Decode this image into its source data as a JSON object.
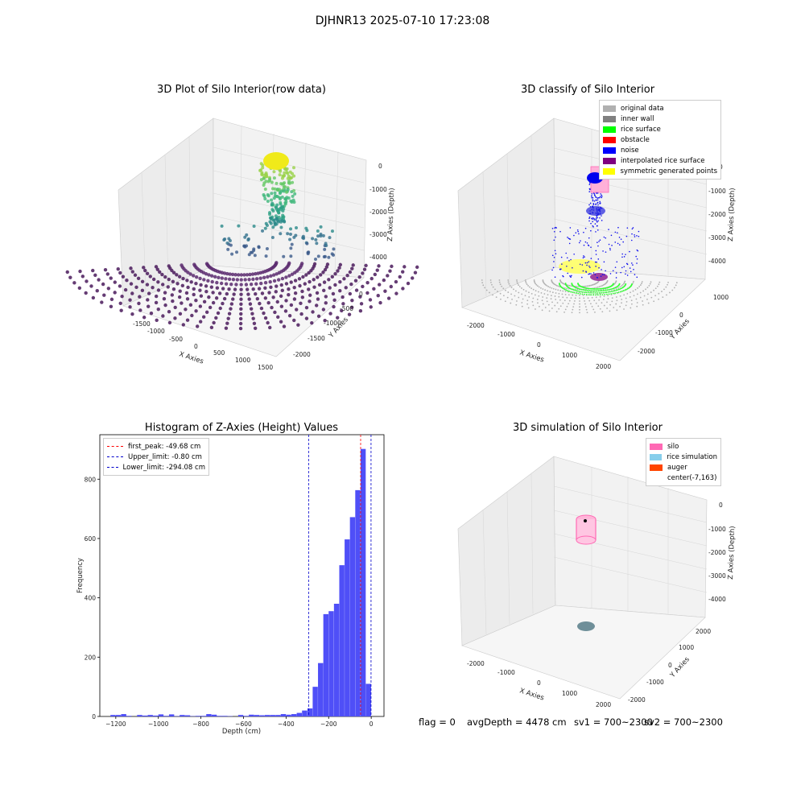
{
  "figure_title": "DJHNR13 2025-07-10 17:23:08",
  "panels": {
    "p1": {
      "title": "3D Plot of Silo Interior(row data)",
      "xlabel": "X Axies",
      "ylabel": "Y Axies",
      "zlabel": "Z Axies (Depth)",
      "xticks": [
        "-1500",
        "-1000",
        "-500",
        "0",
        "500",
        "1000",
        "1500"
      ],
      "yticks": [
        "0",
        "-500",
        "-1000",
        "-1500",
        "-2000"
      ],
      "zticks": [
        "0",
        "-1000",
        "-2000",
        "-3000",
        "-4000"
      ]
    },
    "p2": {
      "title": "3D classify of Silo Interior",
      "xlabel": "X Axies",
      "ylabel": "Y Axies",
      "zlabel": "Z Axies (Depth)",
      "xticks": [
        "-2000",
        "-1000",
        "0",
        "1000",
        "2000"
      ],
      "yticks": [
        "1000",
        "0",
        "-1000",
        "-2000"
      ],
      "zticks": [
        "0",
        "-1000",
        "-2000",
        "-3000",
        "-4000"
      ],
      "legend": [
        {
          "label": "original data",
          "color": "#b0b0b0"
        },
        {
          "label": "inner wall",
          "color": "#808080"
        },
        {
          "label": "rice surface",
          "color": "#00ff00"
        },
        {
          "label": "obstacle",
          "color": "#ff0000"
        },
        {
          "label": "noise",
          "color": "#0000ff"
        },
        {
          "label": "interpolated rice surface",
          "color": "#800080"
        },
        {
          "label": "symmetric generated points",
          "color": "#ffff00"
        }
      ]
    },
    "p4": {
      "title": "3D simulation of Silo Interior",
      "xlabel": "X Axies",
      "ylabel": "Y Axies",
      "zlabel": "Z Axies (Depth)",
      "xticks": [
        "-2000",
        "-1000",
        "0",
        "1000",
        "2000"
      ],
      "yticks": [
        "2000",
        "1000",
        "0",
        "-1000",
        "-2000"
      ],
      "zticks": [
        "0",
        "-1000",
        "-2000",
        "-3000",
        "-4000"
      ],
      "legend": [
        {
          "label": "silo",
          "color": "#ff69b4"
        },
        {
          "label": "rice simulation",
          "color": "#87ceeb"
        },
        {
          "label": "auger",
          "color": "#ff4500"
        },
        {
          "label": "center(-7,163)",
          "color": "#ffffff"
        }
      ]
    }
  },
  "chart_data": [
    {
      "type": "bar",
      "title": "Histogram of Z-Axies (Height) Values",
      "xlabel": "Depth (cm)",
      "ylabel": "Frequency",
      "xlim": [
        -1275,
        60
      ],
      "ylim": [
        0,
        950
      ],
      "xticks": [
        -1200,
        -1000,
        -800,
        -600,
        -400,
        -200,
        0
      ],
      "yticks": [
        0,
        200,
        400,
        600,
        800
      ],
      "bin_width": 25,
      "bins": [
        [
          -1225,
          5
        ],
        [
          -1200,
          5
        ],
        [
          -1175,
          8
        ],
        [
          -1150,
          2
        ],
        [
          -1125,
          0
        ],
        [
          -1100,
          5
        ],
        [
          -1075,
          3
        ],
        [
          -1050,
          5
        ],
        [
          -1025,
          3
        ],
        [
          -1000,
          7
        ],
        [
          -975,
          2
        ],
        [
          -950,
          7
        ],
        [
          -925,
          1
        ],
        [
          -900,
          5
        ],
        [
          -875,
          4
        ],
        [
          -850,
          1
        ],
        [
          -825,
          2
        ],
        [
          -800,
          2
        ],
        [
          -775,
          8
        ],
        [
          -750,
          6
        ],
        [
          -725,
          2
        ],
        [
          -700,
          2
        ],
        [
          -675,
          1
        ],
        [
          -650,
          0
        ],
        [
          -625,
          5
        ],
        [
          -600,
          2
        ],
        [
          -575,
          6
        ],
        [
          -550,
          5
        ],
        [
          -525,
          4
        ],
        [
          -500,
          5
        ],
        [
          -475,
          5
        ],
        [
          -450,
          5
        ],
        [
          -425,
          8
        ],
        [
          -400,
          6
        ],
        [
          -375,
          8
        ],
        [
          -350,
          12
        ],
        [
          -325,
          20
        ],
        [
          -300,
          27
        ],
        [
          -275,
          100
        ],
        [
          -250,
          180
        ],
        [
          -225,
          345
        ],
        [
          -200,
          355
        ],
        [
          -175,
          380
        ],
        [
          -150,
          510
        ],
        [
          -125,
          597
        ],
        [
          -100,
          672
        ],
        [
          -75,
          763
        ],
        [
          -50,
          902
        ],
        [
          -25,
          110
        ]
      ],
      "vlines": [
        {
          "label": "first_peak: -49.68 cm",
          "value": -49.68,
          "color": "#ff0000"
        },
        {
          "label": "Upper_limit: -0.80 cm",
          "value": -0.8,
          "color": "#0000cc"
        },
        {
          "label": "Lower_limit: -294.08 cm",
          "value": -294.08,
          "color": "#0000cc"
        }
      ],
      "bar_color": "#4f4ff7"
    }
  ],
  "footer": {
    "flag": "flag = 0",
    "avg": "avgDepth = 4478 cm",
    "sv1": "sv1 = 700~2300",
    "sv2": "sv2 = 700~2300"
  }
}
